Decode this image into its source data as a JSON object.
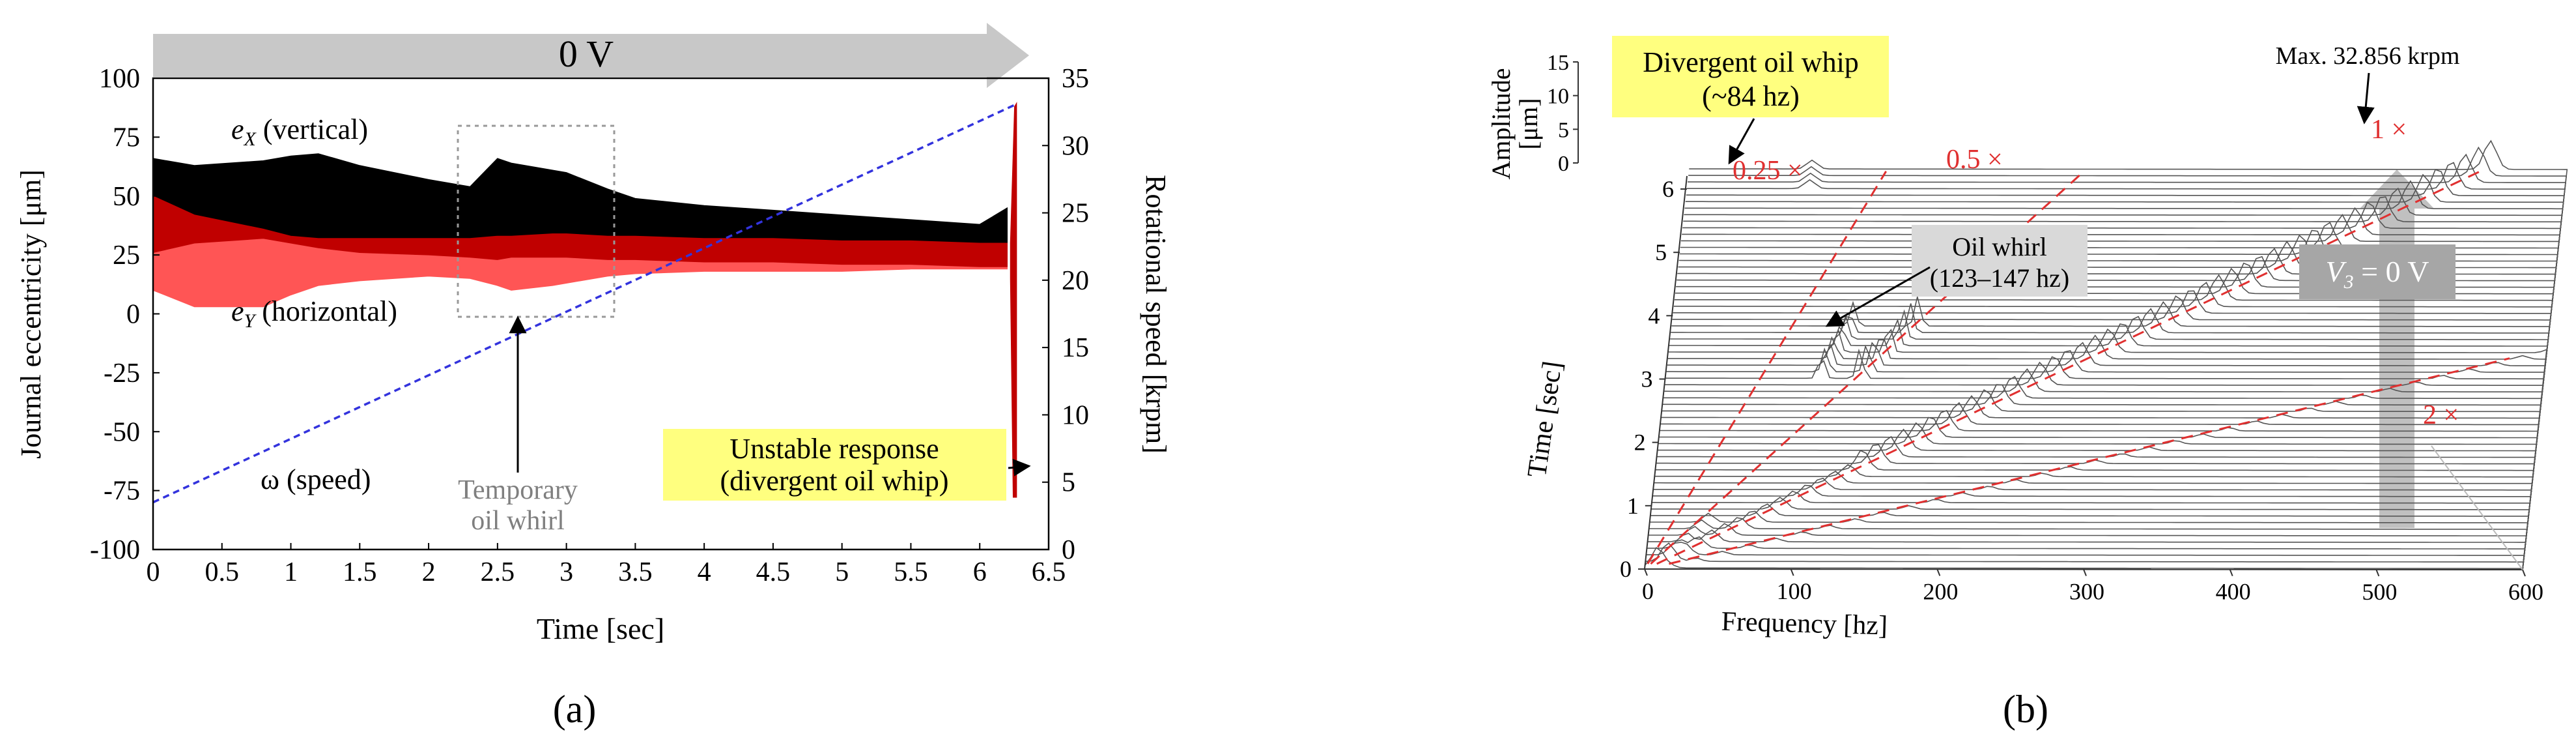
{
  "chart_data": [
    {
      "type": "area",
      "panel_label": "(a)",
      "banner": "0 V",
      "xlabel": "Time [sec]",
      "ylabel": "Journal eccentricity [μm]",
      "y2label": "Rotational speed [krpm]",
      "xlim": [
        0,
        6.5
      ],
      "ylim": [
        -100,
        100
      ],
      "y2lim": [
        0,
        35
      ],
      "x_ticks": [
        "0",
        "0.5",
        "1",
        "1.5",
        "2",
        "2.5",
        "3",
        "3.5",
        "4",
        "4.5",
        "5",
        "5.5",
        "6",
        "6.5"
      ],
      "y_ticks": [
        "100",
        "75",
        "50",
        "25",
        "0",
        "-25",
        "-50",
        "-75",
        "-100"
      ],
      "y2_ticks": [
        "35",
        "30",
        "25",
        "20",
        "15",
        "10",
        "5",
        "0"
      ],
      "series": [
        {
          "name": "e_X (vertical)",
          "color": "#000000",
          "x": [
            0,
            0.3,
            0.8,
            1.0,
            1.2,
            1.5,
            2.0,
            2.3,
            2.5,
            2.6,
            2.9,
            3.0,
            3.3,
            3.5,
            4.0,
            4.5,
            5.0,
            5.5,
            6.0,
            6.2
          ],
          "upper": [
            66,
            63,
            65,
            67,
            68,
            63,
            57,
            54,
            66,
            64,
            61,
            60,
            53,
            49,
            46,
            44,
            42,
            40,
            38,
            45
          ],
          "lower": [
            50,
            42,
            36,
            33,
            32,
            32,
            32,
            32,
            33,
            33,
            34,
            34,
            33,
            33,
            32,
            32,
            31,
            31,
            30,
            30
          ]
        },
        {
          "name": "e_Y (horizontal)",
          "color": "#ff5555",
          "x": [
            0,
            0.3,
            0.8,
            1.0,
            1.2,
            1.5,
            2.0,
            2.3,
            2.5,
            2.6,
            2.9,
            3.0,
            3.3,
            3.5,
            4.0,
            4.5,
            5.0,
            5.5,
            6.0,
            6.2
          ],
          "upper": [
            26,
            30,
            32,
            30,
            28,
            26,
            25,
            24,
            23,
            24,
            24,
            24,
            23,
            23,
            22,
            22,
            21,
            21,
            20,
            20
          ],
          "lower": [
            10,
            3,
            3,
            8,
            12,
            14,
            16,
            15,
            12,
            10,
            12,
            13,
            16,
            17,
            18,
            18,
            18,
            19,
            19,
            19
          ]
        },
        {
          "name": "ω (speed)",
          "color": "#3333dd",
          "axis": "y2",
          "x": [
            0,
            6.25
          ],
          "y": [
            3.5,
            33
          ]
        }
      ],
      "annotations": [
        "e_X (vertical)",
        "e_Y (horizontal)",
        "ω (speed)",
        "Temporary oil whirl",
        "Unstable response (divergent oil whip)"
      ],
      "labels": {
        "ex_base": "e",
        "ex_sub": "X",
        "ex_rest": " (vertical)",
        "ey_base": "e",
        "ey_sub": "Y",
        "ey_rest": " (horizontal)",
        "omega": "ω (speed)",
        "temp_line1": "Temporary",
        "temp_line2": "oil whirl",
        "unstable_line1": "Unstable response",
        "unstable_line2": "(divergent oil whip)"
      }
    },
    {
      "type": "waterfall",
      "panel_label": "(b)",
      "xlabel": "Frequency [hz]",
      "ylabel": "Time [sec]",
      "zlabel": "Amplitude [μm]",
      "zlabel_line1": "Amplitude",
      "zlabel_line2": "[μm]",
      "xlim": [
        0,
        600
      ],
      "ylim": [
        0,
        6.5
      ],
      "zlim": [
        0,
        15
      ],
      "x_ticks": [
        "0",
        "100",
        "200",
        "300",
        "400",
        "500",
        "600"
      ],
      "y_ticks": [
        "0",
        "1",
        "2",
        "3",
        "4",
        "5",
        "6"
      ],
      "z_ticks": [
        "15",
        "10",
        "5",
        "0"
      ],
      "order_lines": [
        "0.25 ×",
        "0.5 ×",
        "1 ×",
        "2 ×"
      ],
      "order_multipliers": [
        0.25,
        0.5,
        1,
        2
      ],
      "max_speed_krpm": 32.856,
      "annotations": [
        "Divergent oil whip (~84 hz)",
        "Oil whirl (123–147 hz)",
        "Max. 32.856 krpm",
        "V3 = 0 V"
      ],
      "labels": {
        "whip_line1": "Divergent oil whip",
        "whip_line2": "(~84 hz)",
        "whirl_line1": "Oil whirl",
        "whirl_line2": "(123–147 hz)",
        "max": "Max. 32.856 krpm",
        "v_base": "V",
        "v_sub": "3",
        "v_rest": " = 0 V"
      }
    }
  ]
}
